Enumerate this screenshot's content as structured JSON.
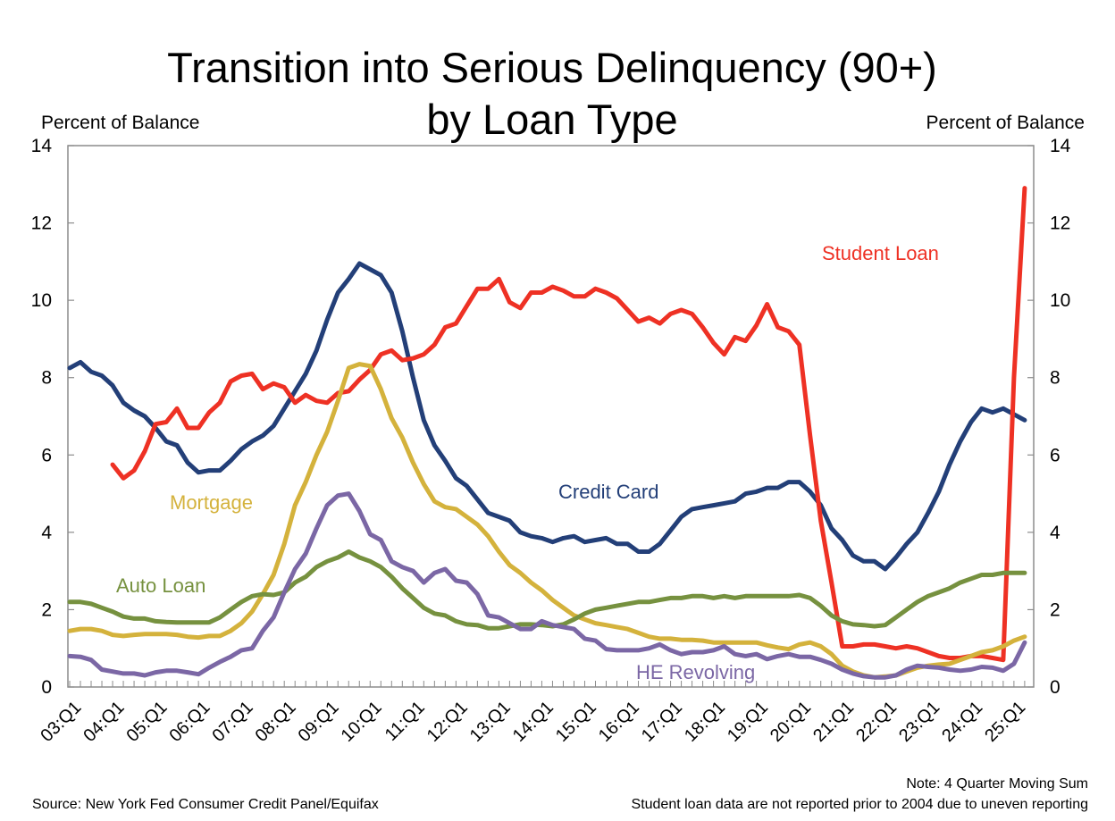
{
  "chart_data": {
    "type": "line",
    "title": [
      "Transition into Serious Delinquency (90+)",
      "by Loan Type"
    ],
    "ylabel_left": "Percent of Balance",
    "ylabel_right": "Percent of Balance",
    "ylim": [
      0,
      14
    ],
    "yticks": [
      0,
      2,
      4,
      6,
      8,
      10,
      12,
      14
    ],
    "x_start": "2003Q1",
    "x_end": "2025Q2",
    "xtick_labels": [
      "03:Q1",
      "04:Q1",
      "05:Q1",
      "06:Q1",
      "07:Q1",
      "08:Q1",
      "09:Q1",
      "10:Q1",
      "11:Q1",
      "12:Q1",
      "13:Q1",
      "14:Q1",
      "15:Q1",
      "16:Q1",
      "17:Q1",
      "18:Q1",
      "19:Q1",
      "20:Q1",
      "21:Q1",
      "22:Q1",
      "23:Q1",
      "24:Q1",
      "25:Q1"
    ],
    "grid": false,
    "series": [
      {
        "name": "Credit Card",
        "color": "#233f78",
        "values": [
          8.25,
          8.4,
          8.15,
          8.05,
          7.8,
          7.35,
          7.15,
          7.0,
          6.7,
          6.35,
          6.25,
          5.8,
          5.55,
          5.6,
          5.6,
          5.85,
          6.15,
          6.35,
          6.5,
          6.75,
          7.2,
          7.65,
          8.1,
          8.7,
          9.5,
          10.2,
          10.55,
          10.95,
          10.8,
          10.65,
          10.2,
          9.2,
          8.0,
          6.9,
          6.25,
          5.85,
          5.4,
          5.2,
          4.85,
          4.5,
          4.4,
          4.3,
          4.0,
          3.9,
          3.85,
          3.75,
          3.85,
          3.9,
          3.75,
          3.8,
          3.85,
          3.7,
          3.7,
          3.5,
          3.5,
          3.7,
          4.05,
          4.4,
          4.6,
          4.65,
          4.7,
          4.75,
          4.8,
          5.0,
          5.05,
          5.15,
          5.15,
          5.3,
          5.3,
          5.05,
          4.7,
          4.1,
          3.8,
          3.4,
          3.25,
          3.25,
          3.05,
          3.35,
          3.7,
          4.0,
          4.5,
          5.05,
          5.75,
          6.35,
          6.85,
          7.2,
          7.1,
          7.2,
          7.05,
          6.9
        ]
      },
      {
        "name": "Student Loan",
        "color": "#ee3124",
        "values": [
          null,
          null,
          null,
          null,
          5.75,
          5.4,
          5.6,
          6.1,
          6.8,
          6.85,
          7.2,
          6.7,
          6.7,
          7.1,
          7.35,
          7.9,
          8.05,
          8.1,
          7.7,
          7.85,
          7.75,
          7.35,
          7.55,
          7.4,
          7.35,
          7.6,
          7.65,
          7.95,
          8.2,
          8.6,
          8.7,
          8.45,
          8.5,
          8.6,
          8.85,
          9.3,
          9.4,
          9.85,
          10.3,
          10.3,
          10.55,
          9.95,
          9.8,
          10.2,
          10.2,
          10.35,
          10.25,
          10.1,
          10.1,
          10.3,
          10.2,
          10.05,
          9.75,
          9.45,
          9.55,
          9.4,
          9.65,
          9.75,
          9.65,
          9.3,
          8.9,
          8.6,
          9.05,
          8.95,
          9.35,
          9.9,
          9.3,
          9.2,
          8.85,
          6.5,
          4.3,
          2.7,
          1.05,
          1.05,
          1.1,
          1.1,
          1.05,
          1.0,
          1.05,
          1.0,
          0.9,
          0.8,
          0.75,
          0.75,
          0.8,
          0.8,
          0.75,
          0.7,
          8.0,
          12.9
        ]
      },
      {
        "name": "Mortgage",
        "color": "#d4b23c",
        "values": [
          1.45,
          1.5,
          1.5,
          1.45,
          1.35,
          1.32,
          1.35,
          1.37,
          1.37,
          1.37,
          1.35,
          1.3,
          1.28,
          1.32,
          1.32,
          1.45,
          1.65,
          1.95,
          2.4,
          2.9,
          3.7,
          4.7,
          5.3,
          6.0,
          6.6,
          7.4,
          8.25,
          8.35,
          8.3,
          7.7,
          6.95,
          6.45,
          5.8,
          5.25,
          4.8,
          4.65,
          4.6,
          4.4,
          4.2,
          3.9,
          3.5,
          3.15,
          2.95,
          2.7,
          2.5,
          2.25,
          2.05,
          1.85,
          1.75,
          1.65,
          1.6,
          1.55,
          1.5,
          1.4,
          1.3,
          1.25,
          1.25,
          1.22,
          1.22,
          1.2,
          1.15,
          1.15,
          1.15,
          1.15,
          1.15,
          1.08,
          1.02,
          0.98,
          1.1,
          1.15,
          1.05,
          0.85,
          0.55,
          0.4,
          0.3,
          0.25,
          0.27,
          0.3,
          0.4,
          0.5,
          0.55,
          0.58,
          0.6,
          0.7,
          0.8,
          0.9,
          0.95,
          1.05,
          1.2,
          1.3
        ]
      },
      {
        "name": "Auto Loan",
        "color": "#76913f",
        "values": [
          2.2,
          2.2,
          2.15,
          2.05,
          1.95,
          1.82,
          1.77,
          1.77,
          1.7,
          1.68,
          1.67,
          1.67,
          1.67,
          1.67,
          1.8,
          2.0,
          2.2,
          2.35,
          2.4,
          2.38,
          2.45,
          2.7,
          2.85,
          3.1,
          3.25,
          3.35,
          3.5,
          3.35,
          3.25,
          3.1,
          2.85,
          2.55,
          2.3,
          2.05,
          1.9,
          1.85,
          1.7,
          1.62,
          1.6,
          1.52,
          1.52,
          1.57,
          1.62,
          1.62,
          1.6,
          1.57,
          1.62,
          1.75,
          1.9,
          2.0,
          2.05,
          2.1,
          2.15,
          2.2,
          2.2,
          2.25,
          2.3,
          2.3,
          2.35,
          2.35,
          2.3,
          2.35,
          2.3,
          2.35,
          2.35,
          2.35,
          2.35,
          2.35,
          2.38,
          2.3,
          2.1,
          1.85,
          1.7,
          1.62,
          1.6,
          1.57,
          1.6,
          1.8,
          2.0,
          2.2,
          2.35,
          2.45,
          2.55,
          2.7,
          2.8,
          2.9,
          2.9,
          2.95,
          2.95,
          2.95
        ]
      },
      {
        "name": "HE Revolving",
        "color": "#7b67a5",
        "values": [
          0.8,
          0.78,
          0.7,
          0.45,
          0.4,
          0.35,
          0.35,
          0.3,
          0.38,
          0.42,
          0.42,
          0.38,
          0.33,
          0.5,
          0.65,
          0.78,
          0.95,
          1.0,
          1.45,
          1.8,
          2.45,
          3.05,
          3.45,
          4.1,
          4.7,
          4.95,
          5.0,
          4.55,
          3.95,
          3.8,
          3.25,
          3.1,
          3.0,
          2.7,
          2.95,
          3.05,
          2.75,
          2.7,
          2.4,
          1.85,
          1.8,
          1.65,
          1.5,
          1.5,
          1.7,
          1.6,
          1.55,
          1.5,
          1.25,
          1.2,
          0.98,
          0.95,
          0.95,
          0.95,
          1.0,
          1.1,
          0.95,
          0.85,
          0.9,
          0.9,
          0.95,
          1.05,
          0.85,
          0.8,
          0.85,
          0.72,
          0.8,
          0.85,
          0.78,
          0.78,
          0.7,
          0.6,
          0.45,
          0.35,
          0.28,
          0.25,
          0.25,
          0.3,
          0.45,
          0.55,
          0.52,
          0.5,
          0.45,
          0.42,
          0.45,
          0.52,
          0.5,
          0.42,
          0.6,
          1.15
        ]
      }
    ],
    "notes": {
      "moving_sum": "Note: 4 Quarter Moving Sum",
      "student_note": "Student loan data are not reported prior to 2004 due to uneven reporting",
      "source": "Source: New York Fed Consumer Credit Panel/Equifax"
    }
  }
}
